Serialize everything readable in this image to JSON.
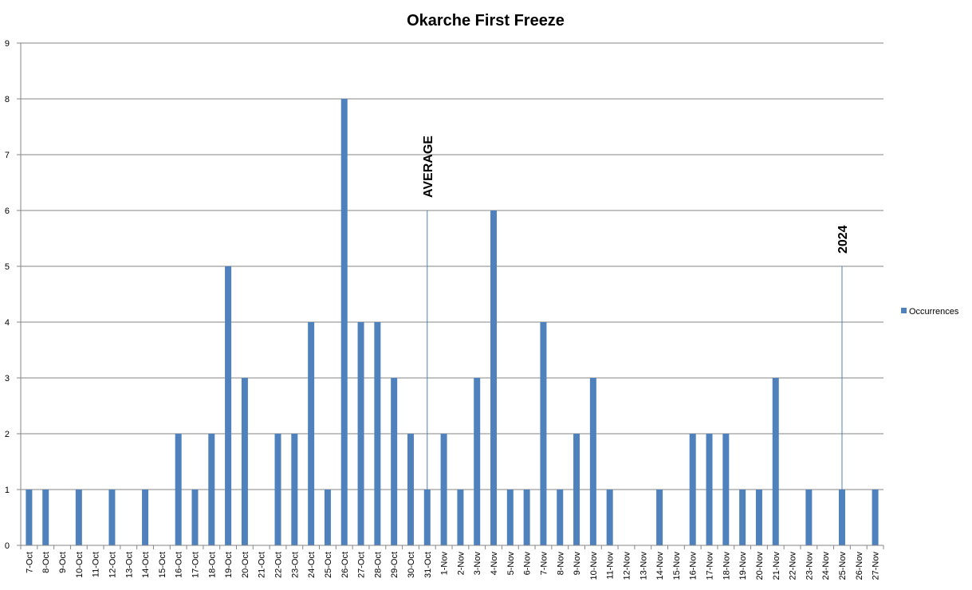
{
  "chart_data": {
    "type": "bar",
    "title": "Okarche First Freeze",
    "xlabel": "",
    "ylabel": "",
    "ylim": [
      0,
      9
    ],
    "yticks": [
      0,
      1,
      2,
      3,
      4,
      5,
      6,
      7,
      8,
      9
    ],
    "grid": true,
    "legend_position": "right",
    "categories": [
      "7-Oct",
      "8-Oct",
      "9-Oct",
      "10-Oct",
      "11-Oct",
      "12-Oct",
      "13-Oct",
      "14-Oct",
      "15-Oct",
      "16-Oct",
      "17-Oct",
      "18-Oct",
      "19-Oct",
      "20-Oct",
      "21-Oct",
      "22-Oct",
      "23-Oct",
      "24-Oct",
      "25-Oct",
      "26-Oct",
      "27-Oct",
      "28-Oct",
      "29-Oct",
      "30-Oct",
      "31-Oct",
      "1-Nov",
      "2-Nov",
      "3-Nov",
      "4-Nov",
      "5-Nov",
      "6-Nov",
      "7-Nov",
      "8-Nov",
      "9-Nov",
      "10-Nov",
      "11-Nov",
      "12-Nov",
      "13-Nov",
      "14-Nov",
      "15-Nov",
      "16-Nov",
      "17-Nov",
      "18-Nov",
      "19-Nov",
      "20-Nov",
      "21-Nov",
      "22-Nov",
      "23-Nov",
      "24-Nov",
      "25-Nov",
      "26-Nov",
      "27-Nov"
    ],
    "series": [
      {
        "name": "Occurrences",
        "color": "#4f81bd",
        "values": [
          1,
          1,
          0,
          1,
          0,
          1,
          0,
          1,
          0,
          2,
          1,
          2,
          5,
          3,
          0,
          2,
          2,
          4,
          1,
          8,
          4,
          4,
          3,
          2,
          1,
          2,
          1,
          3,
          6,
          1,
          1,
          4,
          1,
          2,
          3,
          1,
          0,
          0,
          1,
          0,
          2,
          2,
          2,
          1,
          1,
          3,
          0,
          1,
          0,
          1,
          0,
          1
        ]
      }
    ],
    "annotations": [
      {
        "label": "AVERAGE",
        "category": "31-Oct",
        "value": 6
      },
      {
        "label": "2024",
        "category": "25-Nov",
        "value": 5
      }
    ]
  }
}
